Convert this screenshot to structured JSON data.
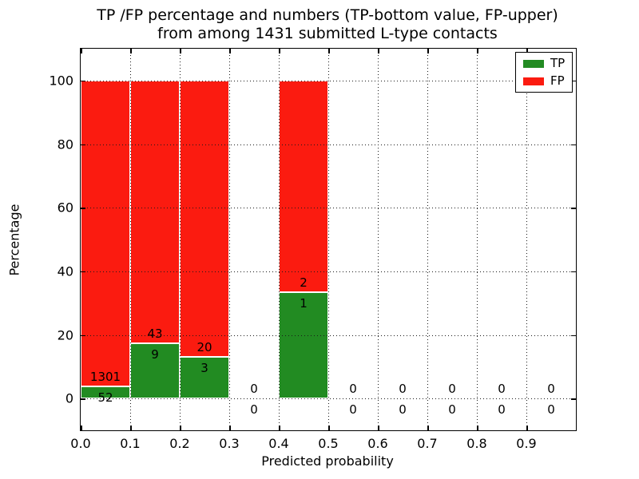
{
  "title": {
    "line1": "TP /FP percentage and numbers (TP-bottom value, FP-upper)",
    "line2": "from among 1431 submitted L-type contacts"
  },
  "chart_data": {
    "type": "bar",
    "stacked": true,
    "title_line1": "TP /FP percentage and numbers (TP-bottom value, FP-upper)",
    "title_line2": "from among 1431 submitted L-type contacts",
    "xlabel": "Predicted probability",
    "ylabel": "Percentage",
    "xlim": [
      0.0,
      1.0
    ],
    "ylim": [
      -10,
      110
    ],
    "x_ticks": [
      "0.0",
      "0.1",
      "0.2",
      "0.3",
      "0.4",
      "0.5",
      "0.6",
      "0.7",
      "0.8",
      "0.9"
    ],
    "y_ticks": [
      "0",
      "20",
      "40",
      "60",
      "80",
      "100"
    ],
    "grid": true,
    "grid_style": "dotted",
    "total_contacts": 1431,
    "colors": {
      "tp": "#228b22",
      "fp": "#fb1b10"
    },
    "legend": {
      "position": "upper right",
      "entries": [
        {
          "label": "TP",
          "color": "#228b22"
        },
        {
          "label": "FP",
          "color": "#fb1b10"
        }
      ]
    },
    "bins": [
      {
        "range": [
          0.0,
          0.1
        ],
        "tp": 52,
        "fp": 1301
      },
      {
        "range": [
          0.1,
          0.2
        ],
        "tp": 9,
        "fp": 43
      },
      {
        "range": [
          0.2,
          0.3
        ],
        "tp": 3,
        "fp": 20
      },
      {
        "range": [
          0.3,
          0.4
        ],
        "tp": 0,
        "fp": 0
      },
      {
        "range": [
          0.4,
          0.5
        ],
        "tp": 1,
        "fp": 2
      },
      {
        "range": [
          0.5,
          0.6
        ],
        "tp": 0,
        "fp": 0
      },
      {
        "range": [
          0.6,
          0.7
        ],
        "tp": 0,
        "fp": 0
      },
      {
        "range": [
          0.7,
          0.8
        ],
        "tp": 0,
        "fp": 0
      },
      {
        "range": [
          0.8,
          0.9
        ],
        "tp": 0,
        "fp": 0
      },
      {
        "range": [
          0.9,
          1.0
        ],
        "tp": 0,
        "fp": 0
      }
    ]
  }
}
